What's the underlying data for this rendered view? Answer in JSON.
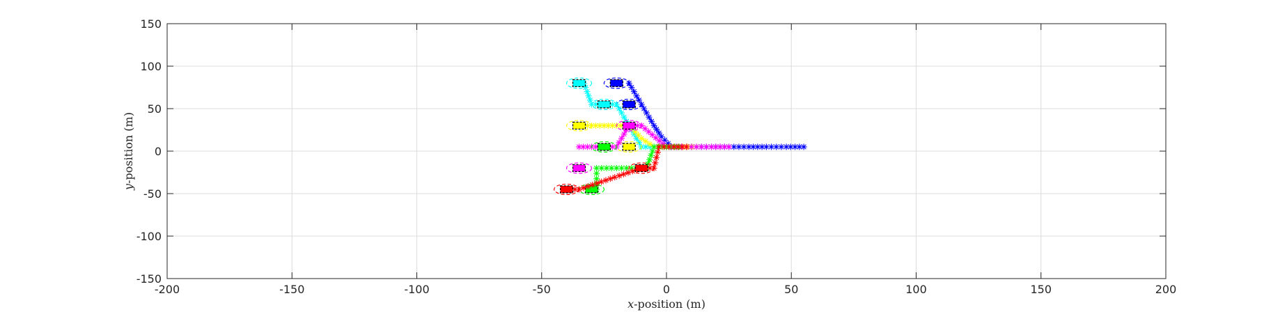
{
  "chart_data": {
    "type": "scatter",
    "xlabel_var": "x",
    "xlabel_rest": "-position (m)",
    "ylabel_var": "y",
    "ylabel_rest": "-position (m)",
    "xlim": [
      -200,
      200
    ],
    "ylim": [
      -150,
      150
    ],
    "xticks": [
      -200,
      -150,
      -100,
      -50,
      0,
      50,
      100,
      150,
      200
    ],
    "yticks": [
      -150,
      -100,
      -50,
      0,
      50,
      100,
      150
    ],
    "grid": true,
    "legend": "none",
    "series": [
      {
        "color": "#0000ff",
        "vehicle": [
          -20,
          80
        ],
        "trajectory": [
          [
            -15,
            80
          ],
          [
            -10,
            55
          ],
          [
            -5,
            30
          ],
          [
            -2,
            17
          ],
          [
            2,
            5
          ],
          [
            10,
            5
          ],
          [
            18,
            5
          ],
          [
            25,
            5
          ],
          [
            33,
            5
          ],
          [
            40,
            5
          ],
          [
            48,
            5
          ],
          [
            55,
            5
          ]
        ],
        "vehicles2": [
          [
            -15,
            55
          ]
        ]
      },
      {
        "color": "#00ffff",
        "vehicle": [
          -35,
          80
        ],
        "trajectory": [
          [
            -33,
            80
          ],
          [
            -30,
            55
          ],
          [
            -25,
            55
          ],
          [
            -20,
            55
          ],
          [
            -15,
            30
          ],
          [
            -10,
            5
          ],
          [
            -5,
            5
          ]
        ],
        "vehicles2": [
          [
            -25,
            55
          ]
        ]
      },
      {
        "color": "#ffff00",
        "vehicle": [
          -35,
          30
        ],
        "trajectory": [
          [
            -35,
            30
          ],
          [
            -30,
            30
          ],
          [
            -25,
            30
          ],
          [
            -20,
            30
          ],
          [
            -15,
            30
          ],
          [
            -10,
            15
          ],
          [
            -5,
            5
          ],
          [
            5,
            5
          ],
          [
            12,
            5
          ]
        ],
        "vehicles2": [
          [
            -15,
            5
          ]
        ]
      },
      {
        "color": "#ff00ff",
        "vehicle": [
          -15,
          30
        ],
        "trajectory": [
          [
            -35,
            5
          ],
          [
            -30,
            5
          ],
          [
            -25,
            5
          ],
          [
            -20,
            5
          ],
          [
            -15,
            30
          ],
          [
            -10,
            30
          ],
          [
            0,
            5
          ],
          [
            10,
            5
          ],
          [
            18,
            5
          ],
          [
            25,
            5
          ]
        ],
        "vehicles2": [
          [
            -35,
            -20
          ]
        ]
      },
      {
        "color": "#00ff00",
        "vehicle": [
          -30,
          -45
        ],
        "trajectory": [
          [
            -28,
            -45
          ],
          [
            -28,
            -20
          ],
          [
            -20,
            -20
          ],
          [
            -12,
            -20
          ],
          [
            -8,
            -20
          ],
          [
            -5,
            5
          ],
          [
            0,
            5
          ],
          [
            5,
            5
          ]
        ],
        "vehicles2": [
          [
            -25,
            5
          ]
        ]
      },
      {
        "color": "#ff0000",
        "vehicle": [
          -40,
          -45
        ],
        "trajectory": [
          [
            -40,
            -45
          ],
          [
            -35,
            -45
          ],
          [
            -10,
            -20
          ],
          [
            -5,
            -20
          ],
          [
            -3,
            5
          ],
          [
            3,
            5
          ],
          [
            8,
            5
          ]
        ],
        "vehicles2": [
          [
            -10,
            -20
          ]
        ]
      }
    ]
  }
}
